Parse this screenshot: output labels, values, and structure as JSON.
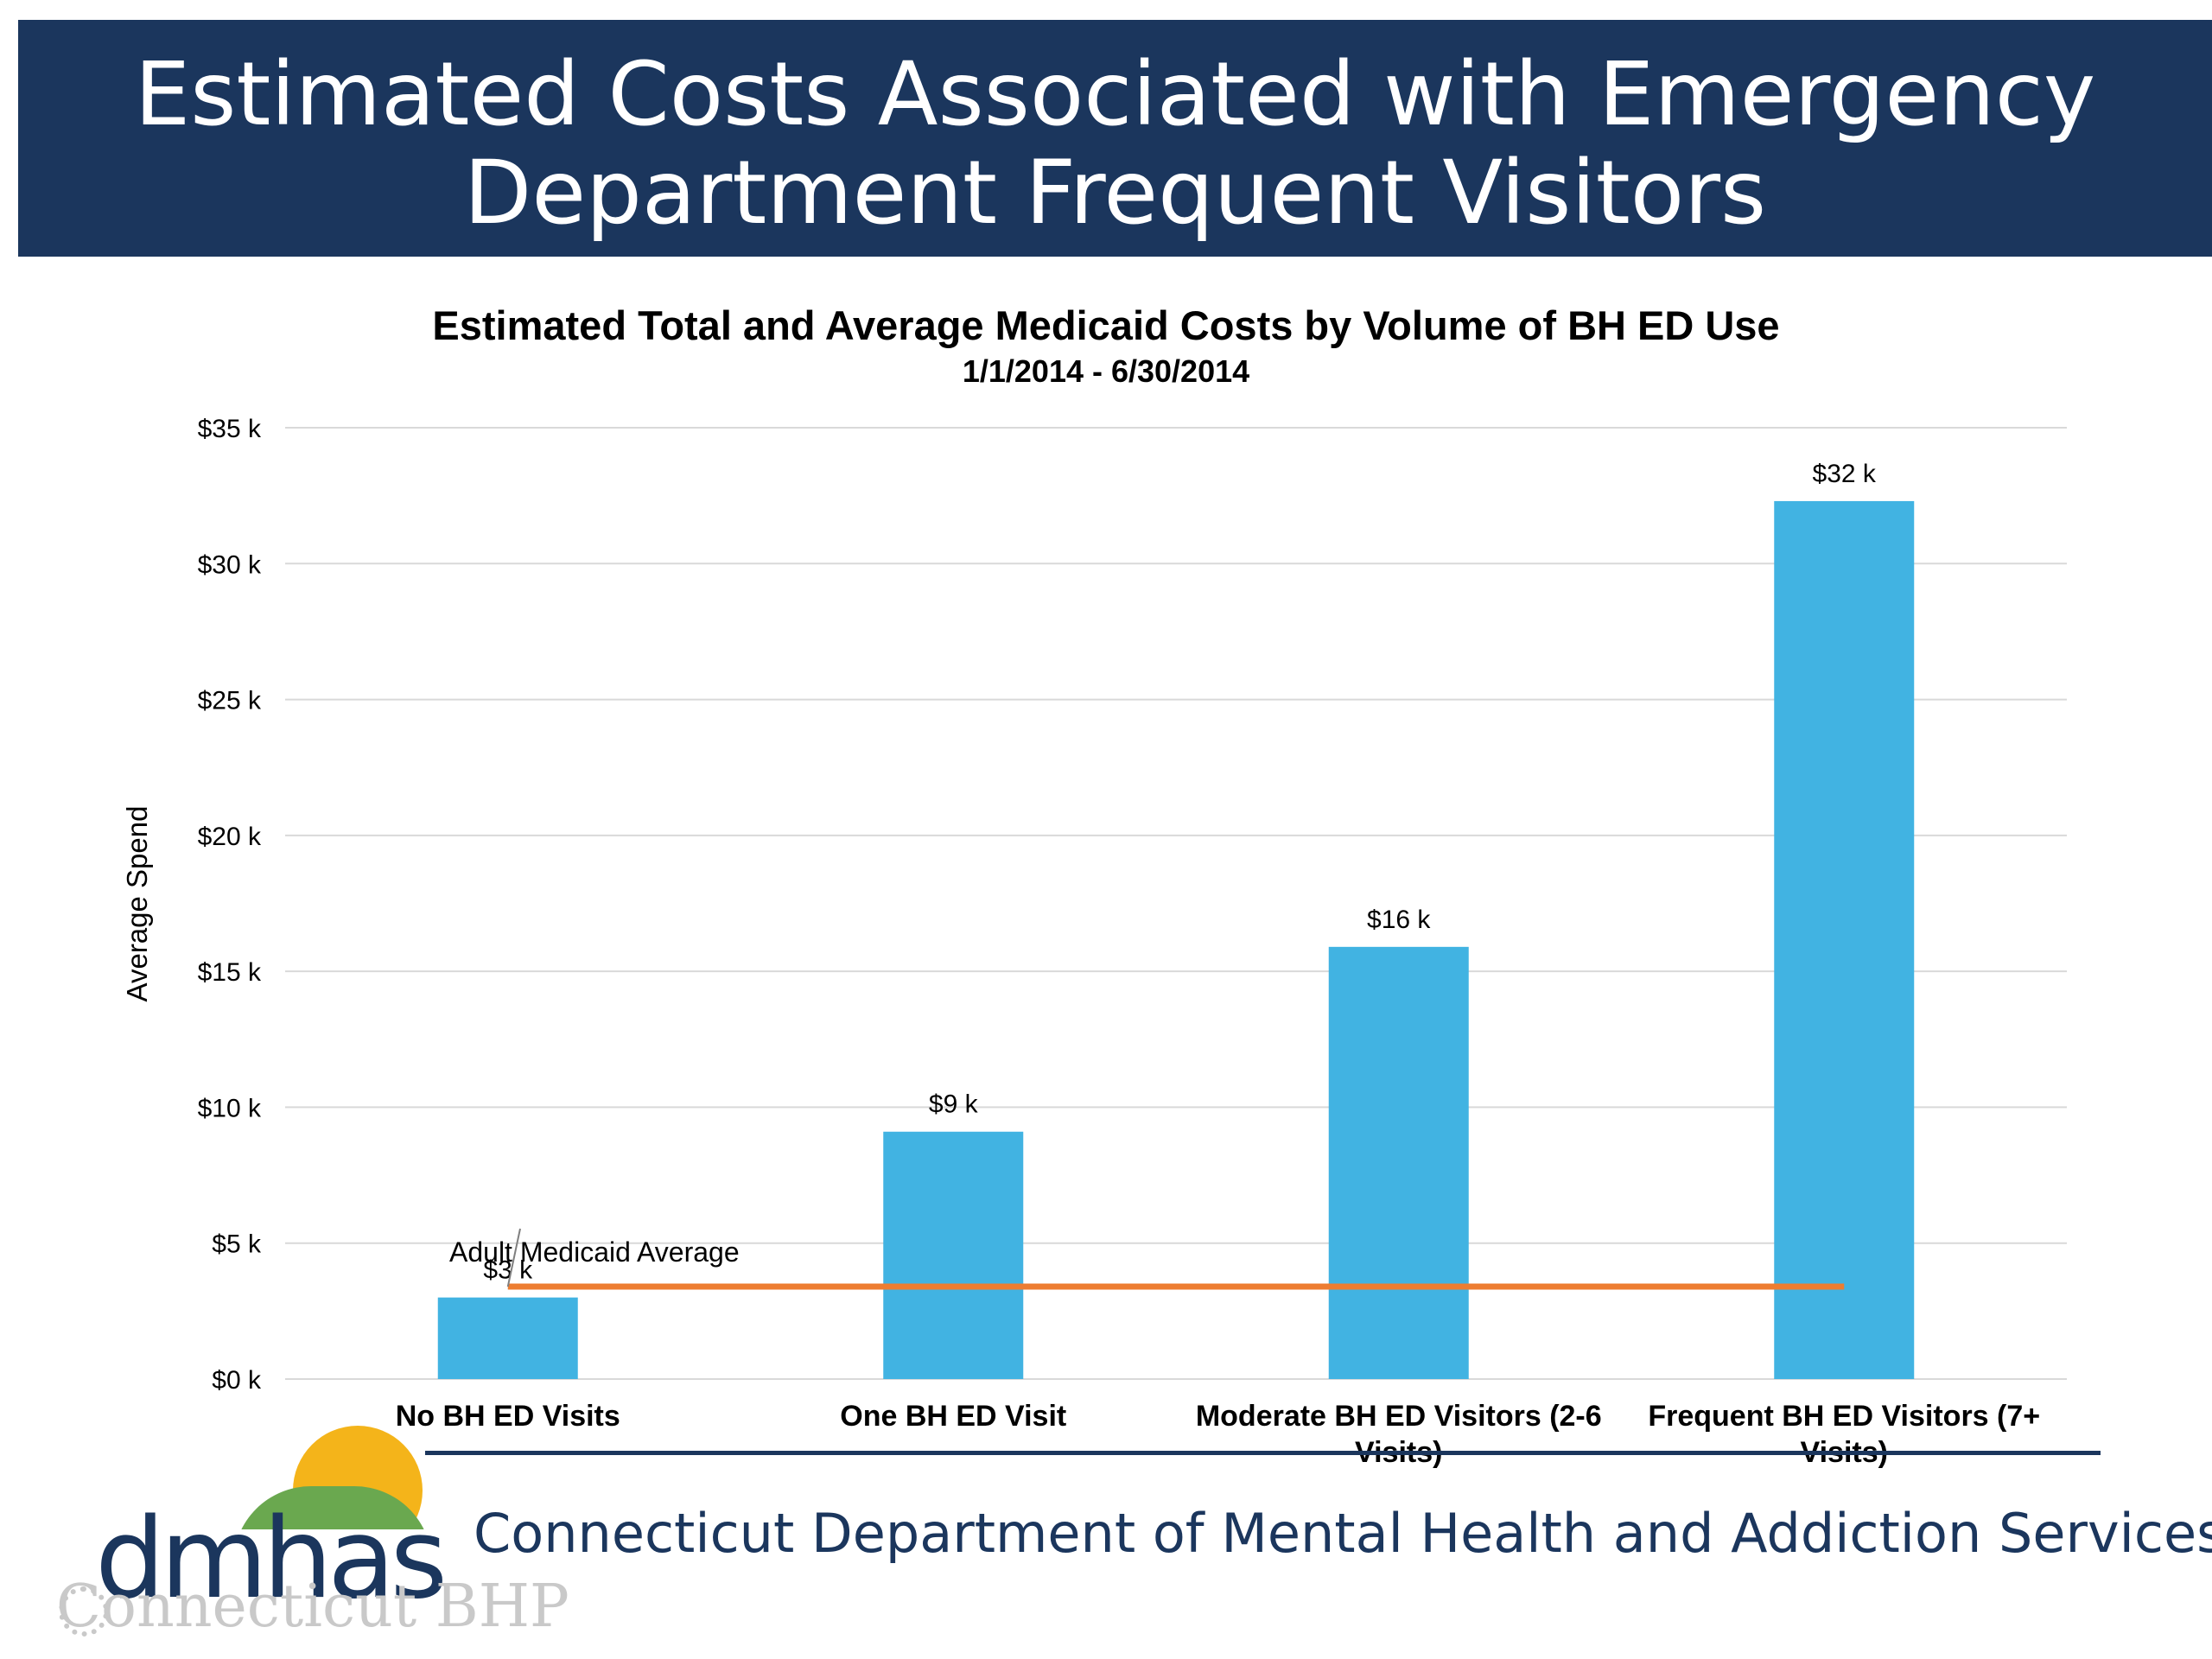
{
  "slide": {
    "title_line1": "Estimated Costs Associated with Emergency",
    "title_line2": "Department Frequent Visitors",
    "footer_text": "Connecticut Department of Mental Health and Addiction Services",
    "logo_text": "dmhas",
    "logo_subtext": "Connecticut BHP",
    "banner_color": "#1b365d"
  },
  "chart_data": {
    "type": "bar",
    "title": "Estimated Total and Average  Medicaid Costs by Volume of  BH ED Use",
    "subtitle": "1/1/2014 - 6/30/2014",
    "ylabel": "Average Spend",
    "xlabel": "",
    "ylim": [
      0,
      35
    ],
    "yticks": [
      0,
      5,
      10,
      15,
      20,
      25,
      30,
      35
    ],
    "ytick_labels": [
      "$0 k",
      "$5 k",
      "$10 k",
      "$15 k",
      "$20 k",
      "$25 k",
      "$30 k",
      "$35 k"
    ],
    "grid": true,
    "categories": [
      [
        "No BH ED Visits"
      ],
      [
        "One BH ED Visit"
      ],
      [
        "Moderate BH ED Visitors (2-6",
        "Visits)"
      ],
      [
        "Frequent BH ED Visitors (7+",
        "Visits)"
      ]
    ],
    "values": [
      3,
      9.1,
      15.9,
      32.3
    ],
    "data_labels": [
      "$3 k",
      "$9 k",
      "$16 k",
      "$32 k"
    ],
    "bar_color": "#41b3e2",
    "reference_line": {
      "label": "Adult Medicaid Average",
      "value": 3.4,
      "color": "#ed7d31"
    }
  }
}
